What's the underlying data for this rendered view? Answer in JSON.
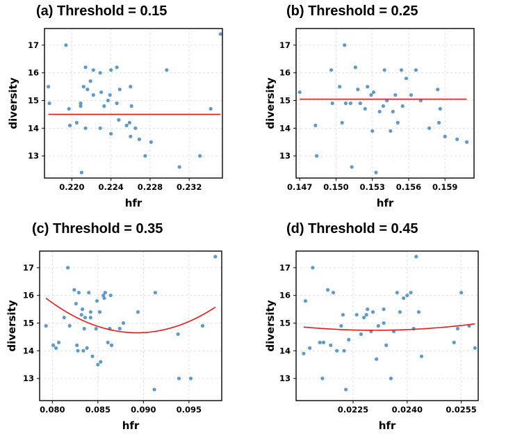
{
  "chart_data": [
    {
      "type": "scatter",
      "title": "(a) Threshold = 0.15",
      "xlabel": "hfr",
      "ylabel": "diversity",
      "xlim": [
        0.2172,
        0.2354
      ],
      "ylim": [
        12.2,
        17.6
      ],
      "xticks": [
        0.22,
        0.224,
        0.228,
        0.232
      ],
      "xtick_labels": [
        "0.220",
        "0.224",
        "0.228",
        "0.232"
      ],
      "yticks": [
        13,
        14,
        15,
        16,
        17
      ],
      "ytick_labels": [
        "13",
        "14",
        "15",
        "16",
        "17"
      ],
      "grid": true,
      "colors": {
        "points": "#4e8fc4",
        "fit": "#e31a1c"
      },
      "points": {
        "x": [
          0.2176,
          0.2177,
          0.2194,
          0.2197,
          0.2198,
          0.2205,
          0.2209,
          0.221,
          0.2212,
          0.2214,
          0.2214,
          0.2216,
          0.2219,
          0.2222,
          0.2222,
          0.2229,
          0.223,
          0.2233,
          0.2237,
          0.2239,
          0.224,
          0.224,
          0.2246,
          0.2246,
          0.2248,
          0.2249,
          0.2256,
          0.2259,
          0.226,
          0.226,
          0.2261,
          0.2265,
          0.2269,
          0.2275,
          0.2281,
          0.2297,
          0.231,
          0.2331,
          0.2342,
          0.2352,
          0.2209,
          0.2229
        ],
        "y": [
          15.5,
          14.9,
          17.0,
          14.7,
          14.1,
          14.2,
          14.9,
          12.4,
          15.5,
          16.2,
          14.0,
          15.4,
          15.7,
          15.2,
          16.1,
          16.0,
          15.3,
          14.8,
          15.0,
          15.2,
          13.8,
          16.1,
          14.9,
          16.2,
          14.3,
          15.4,
          14.1,
          14.2,
          13.7,
          15.5,
          14.8,
          14.0,
          13.6,
          13.0,
          13.5,
          16.1,
          12.6,
          13.0,
          14.7,
          17.4,
          14.8,
          14.0
        ]
      },
      "fit": {
        "a": 3.5,
        "b": 0.229,
        "c": 14.5
      }
    },
    {
      "type": "scatter",
      "title": "(b) Threshold = 0.25",
      "xlabel": "hfr",
      "ylabel": "diversity",
      "xlim": [
        0.1467,
        0.1614
      ],
      "ylim": [
        12.2,
        17.6
      ],
      "xticks": [
        0.147,
        0.15,
        0.153,
        0.156,
        0.159
      ],
      "xtick_labels": [
        "0.147",
        "0.150",
        "0.153",
        "0.156",
        "0.159"
      ],
      "yticks": [
        13,
        14,
        15,
        16,
        17
      ],
      "ytick_labels": [
        "13",
        "14",
        "15",
        "16",
        "17"
      ],
      "grid": true,
      "colors": {
        "points": "#4e8fc4",
        "fit": "#e31a1c"
      },
      "points": {
        "x": [
          0.147,
          0.1483,
          0.1484,
          0.1496,
          0.1497,
          0.1503,
          0.1505,
          0.1507,
          0.1512,
          0.1513,
          0.1516,
          0.1518,
          0.152,
          0.1524,
          0.1526,
          0.153,
          0.1531,
          0.1533,
          0.1536,
          0.1539,
          0.154,
          0.1542,
          0.1545,
          0.1547,
          0.1549,
          0.1551,
          0.1554,
          0.1555,
          0.1558,
          0.1562,
          0.1566,
          0.157,
          0.1577,
          0.1584,
          0.1585,
          0.1586,
          0.159,
          0.16,
          0.1608,
          0.1529,
          0.1508
        ],
        "y": [
          15.3,
          14.1,
          13.0,
          16.1,
          14.9,
          15.5,
          14.2,
          17.0,
          14.9,
          12.6,
          16.2,
          15.4,
          14.9,
          14.7,
          15.5,
          13.9,
          15.3,
          12.4,
          14.6,
          14.8,
          16.1,
          15.0,
          13.9,
          14.6,
          15.2,
          14.2,
          16.1,
          14.8,
          15.8,
          15.2,
          16.1,
          15.0,
          14.0,
          15.4,
          14.2,
          14.7,
          13.7,
          13.6,
          13.5,
          15.2,
          14.9
        ]
      },
      "fit": {
        "a": -38.7,
        "b": 0.1532,
        "c": 15.05
      }
    },
    {
      "type": "scatter",
      "title": "(c) Threshold = 0.35",
      "xlabel": "hfr",
      "ylabel": "diversity",
      "xlim": [
        0.0786,
        0.0986
      ],
      "ylim": [
        12.2,
        17.6
      ],
      "xticks": [
        0.08,
        0.085,
        0.09,
        0.095
      ],
      "xtick_labels": [
        "0.080",
        "0.085",
        "0.090",
        "0.095"
      ],
      "yticks": [
        13,
        14,
        15,
        16,
        17
      ],
      "ytick_labels": [
        "13",
        "14",
        "15",
        "16",
        "17"
      ],
      "grid": true,
      "colors": {
        "points": "#4e8fc4",
        "fit": "#e31a1c"
      },
      "points": {
        "x": [
          0.0793,
          0.0801,
          0.0804,
          0.0807,
          0.0813,
          0.0817,
          0.0819,
          0.0824,
          0.0826,
          0.0827,
          0.0828,
          0.0829,
          0.0832,
          0.0833,
          0.0834,
          0.0836,
          0.0838,
          0.084,
          0.0842,
          0.0844,
          0.0848,
          0.0849,
          0.085,
          0.0852,
          0.0853,
          0.0856,
          0.0857,
          0.0858,
          0.0861,
          0.0863,
          0.0864,
          0.0865,
          0.0874,
          0.0878,
          0.0894,
          0.0912,
          0.0913,
          0.0938,
          0.0939,
          0.0952,
          0.0965,
          0.0979,
          0.0835,
          0.0842
        ],
        "y": [
          14.9,
          14.2,
          14.1,
          14.3,
          15.2,
          17.0,
          14.9,
          16.2,
          15.7,
          14.2,
          14.0,
          16.1,
          15.3,
          15.5,
          14.0,
          15.2,
          14.1,
          16.1,
          15.2,
          13.8,
          14.8,
          15.8,
          13.5,
          15.4,
          13.6,
          16.0,
          15.9,
          16.1,
          14.3,
          14.8,
          16.0,
          14.2,
          14.8,
          15.0,
          15.4,
          12.6,
          16.1,
          14.6,
          13.0,
          13.0,
          14.9,
          17.4,
          14.8,
          15.4
        ]
      },
      "fit": {
        "a": 12500,
        "b": 0.0893,
        "c": 14.65
      }
    },
    {
      "type": "scatter",
      "title": "(d) Threshold = 0.45",
      "xlabel": "hfr",
      "ylabel": "diversity",
      "xlim": [
        0.02092,
        0.02597
      ],
      "ylim": [
        12.2,
        17.6
      ],
      "xticks": [
        0.0225,
        0.024,
        0.0255
      ],
      "xtick_labels": [
        "0.0225",
        "0.0240",
        "0.0255"
      ],
      "yticks": [
        13,
        14,
        15,
        16,
        17
      ],
      "ytick_labels": [
        "13",
        "14",
        "15",
        "16",
        "17"
      ],
      "grid": true,
      "colors": {
        "points": "#4e8fc4",
        "fit": "#e31a1c"
      },
      "points": {
        "x": [
          0.02113,
          0.02118,
          0.0213,
          0.02138,
          0.02158,
          0.02165,
          0.02168,
          0.0218,
          0.02188,
          0.02195,
          0.02205,
          0.02217,
          0.02222,
          0.02225,
          0.0223,
          0.02238,
          0.0226,
          0.02272,
          0.0228,
          0.0229,
          0.023,
          0.02305,
          0.02315,
          0.0232,
          0.02335,
          0.02342,
          0.02355,
          0.02363,
          0.02372,
          0.0238,
          0.0239,
          0.024,
          0.0241,
          0.02418,
          0.02425,
          0.02432,
          0.0244,
          0.0253,
          0.0254,
          0.0255,
          0.02572,
          0.02588,
          0.02335,
          0.02287
        ],
        "y": [
          13.9,
          15.8,
          14.1,
          17.0,
          14.3,
          13.0,
          14.3,
          16.2,
          14.2,
          16.1,
          14.0,
          14.9,
          15.3,
          14.0,
          12.6,
          14.4,
          15.3,
          14.6,
          15.2,
          15.5,
          14.7,
          15.4,
          13.7,
          14.9,
          15.5,
          14.2,
          13.0,
          14.7,
          16.1,
          15.4,
          15.9,
          16.0,
          16.1,
          14.8,
          17.4,
          15.4,
          13.8,
          14.3,
          14.8,
          16.1,
          14.9,
          14.1,
          15.0,
          15.3
        ]
      },
      "fit": {
        "a": 30000,
        "b": 0.0231,
        "c": 14.74
      }
    }
  ]
}
